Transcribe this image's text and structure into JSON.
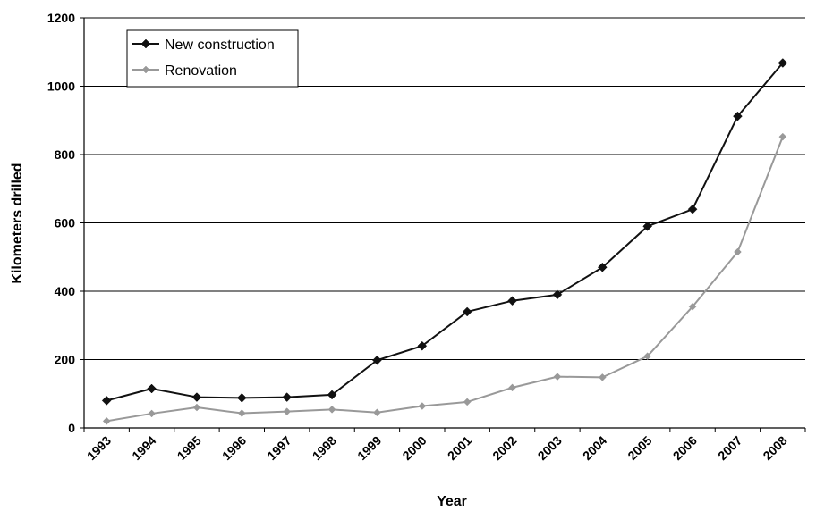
{
  "chart_data": {
    "type": "line",
    "title": "",
    "xlabel": "Year",
    "ylabel": "Kilometers drilled",
    "ylim": [
      0,
      1200
    ],
    "yticks": [
      0,
      200,
      400,
      600,
      800,
      1000,
      1200
    ],
    "grid": true,
    "legend_position": "top-left",
    "categories": [
      "1993",
      "1994",
      "1995",
      "1996",
      "1997",
      "1998",
      "1999",
      "2000",
      "2001",
      "2002",
      "2003",
      "2004",
      "2005",
      "2006",
      "2007",
      "2008"
    ],
    "series": [
      {
        "name": "New construction",
        "color": "#111111",
        "marker": "diamond",
        "values": [
          80,
          115,
          90,
          88,
          90,
          97,
          198,
          240,
          340,
          372,
          390,
          470,
          590,
          640,
          912,
          1068
        ]
      },
      {
        "name": "Renovation",
        "color": "#999999",
        "marker": "diamond",
        "values": [
          20,
          42,
          60,
          43,
          48,
          54,
          45,
          64,
          76,
          118,
          150,
          148,
          210,
          355,
          515,
          852
        ]
      }
    ]
  }
}
